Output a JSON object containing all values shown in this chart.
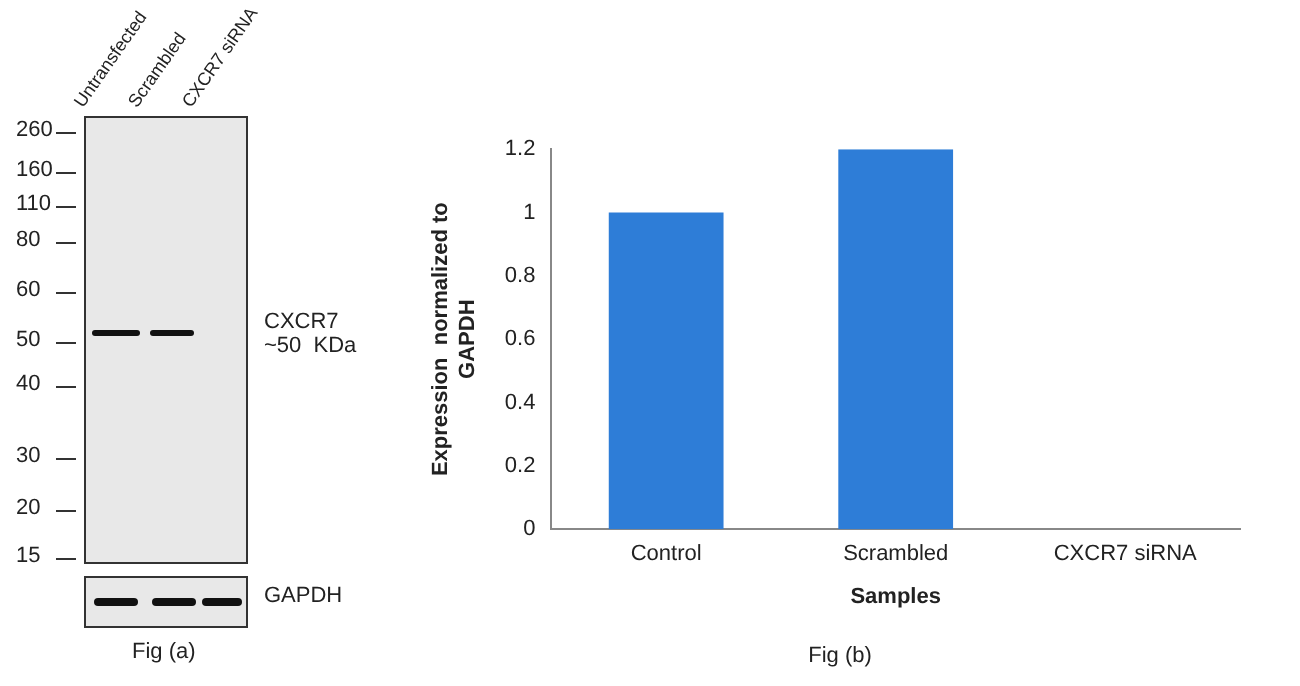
{
  "chart_data": [
    {
      "type": "other",
      "annotations": [
        "Untransfected",
        "Scrambled",
        "CXCR7 siRNA",
        "260",
        "160",
        "110",
        "80",
        "60",
        "50",
        "40",
        "30",
        "20",
        "15",
        "CXCR7\n~50  KDa",
        "GAPDH",
        "Fig (a)"
      ]
    },
    {
      "type": "bar",
      "categories": [
        "Control",
        "Scrambled",
        "CXCR7 siRNA"
      ],
      "values": [
        1,
        1.2,
        0
      ],
      "color": "#2e7dd7",
      "xlabel": "Samples",
      "ylabel": "Expression  normalized to\nGAPDH",
      "ylim": [
        0,
        1.2
      ],
      "yticks": [
        0,
        0.2,
        0.4,
        0.6,
        0.8,
        1,
        1.2
      ],
      "grid": false,
      "legend": false,
      "annotations": [
        "Fig (b)"
      ]
    }
  ]
}
